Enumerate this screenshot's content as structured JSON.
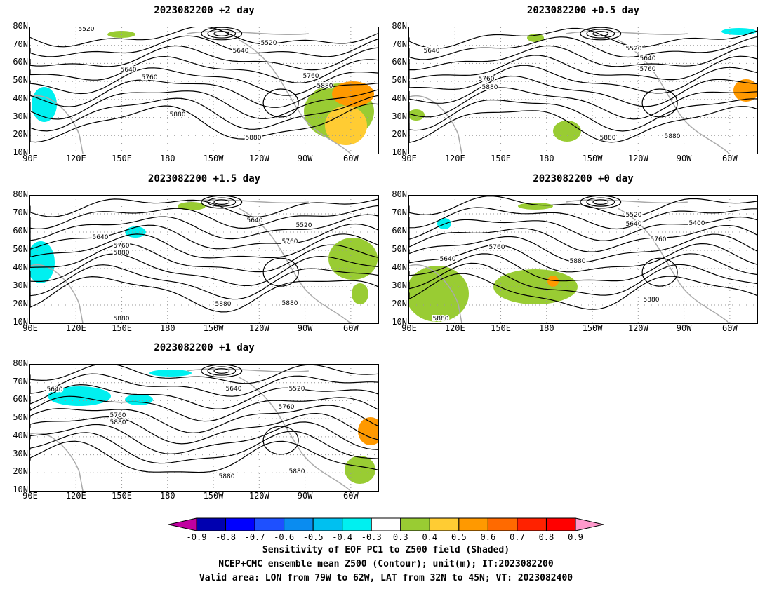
{
  "panels": [
    {
      "title": "2023082200 +2 day",
      "contour_labels": [
        "5520",
        "5520",
        "5640",
        "5640",
        "5760",
        "5760",
        "5880",
        "5880",
        "5880"
      ]
    },
    {
      "title": "2023082200 +0.5 day",
      "contour_labels": [
        "5640",
        "5520",
        "5640",
        "5760",
        "5760",
        "5880",
        "5880",
        "5880"
      ]
    },
    {
      "title": "2023082200 +1.5 day",
      "contour_labels": [
        "5640",
        "5640",
        "5520",
        "5760",
        "5880",
        "5760",
        "5880",
        "5880",
        "5880"
      ]
    },
    {
      "title": "2023082200 +0 day",
      "contour_labels": [
        "5520",
        "5640",
        "5400",
        "5640",
        "5760",
        "5760",
        "5880",
        "5880",
        "5880"
      ]
    },
    {
      "title": "2023082200 +1 day",
      "contour_labels": [
        "5640",
        "5640",
        "5520",
        "5760",
        "5760",
        "5880",
        "5880",
        "5880"
      ]
    }
  ],
  "axes": {
    "lat_labels": [
      "80N",
      "70N",
      "60N",
      "50N",
      "40N",
      "30N",
      "20N",
      "10N"
    ],
    "lon_labels": [
      "90E",
      "120E",
      "150E",
      "180",
      "150W",
      "120W",
      "90W",
      "60W"
    ]
  },
  "colorbar": {
    "tick_labels": [
      "-0.9",
      "-0.8",
      "-0.7",
      "-0.6",
      "-0.5",
      "-0.4",
      "-0.3",
      "0.3",
      "0.4",
      "0.5",
      "0.6",
      "0.7",
      "0.8",
      "0.9"
    ],
    "colors": [
      "#c000a0",
      "#0000b0",
      "#0000ff",
      "#1e50ff",
      "#0a8cf0",
      "#00c0f0",
      "#00f0f0",
      "#ffffff",
      "#99cc33",
      "#ffcc33",
      "#ff9900",
      "#ff6a00",
      "#ff2200",
      "#ff0000",
      "#ff99cc"
    ]
  },
  "caption": {
    "line1": "Sensitivity of EOF PC1 to Z500 field (Shaded)",
    "line2": "NCEP+CMC ensemble mean Z500 (Contour); unit(m); IT:2023082200",
    "line3": "Valid area: LON from 79W to 62W, LAT from 32N to 45N; VT: 2023082400"
  }
}
